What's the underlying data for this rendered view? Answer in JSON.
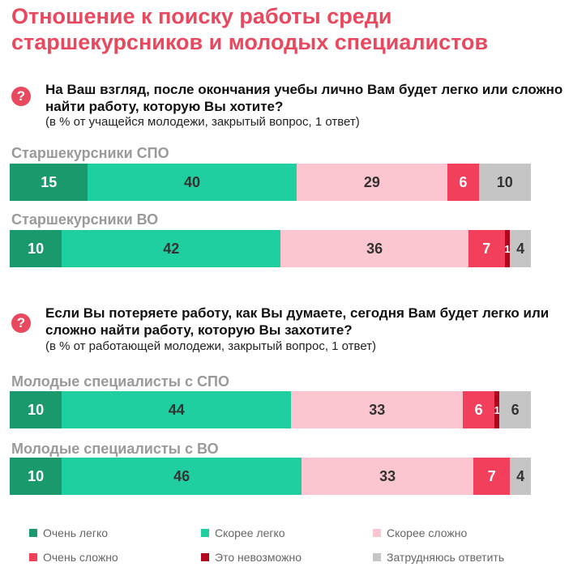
{
  "title": "Отношение к поиску работы среди старшекурсников и молодых специалистов",
  "colors": {
    "very_easy": "#1a9a6c",
    "rather_easy": "#20cfa0",
    "rather_hard": "#fbc6cf",
    "very_hard": "#f23f5b",
    "impossible": "#b0061e",
    "hard_to_say": "#c5c5c5",
    "accent": "#e8495e"
  },
  "question_icon": "question-mark-icon",
  "question_icon_glyph": "?",
  "chart_data": [
    {
      "type": "bar",
      "orientation": "horizontal-stacked",
      "question": "На Ваш взгляд, после окончания учебы лично Вам будет легко или сложно найти работу, которую Вы хотите?",
      "note": "(в % от учащейся молодежи, закрытый вопрос, 1 ответ)",
      "categories": [
        "Старшекурсники СПО",
        "Старшекурсники ВО"
      ],
      "series": [
        {
          "name": "Очень легко",
          "values": [
            15,
            10
          ]
        },
        {
          "name": "Скорее легко",
          "values": [
            40,
            42
          ]
        },
        {
          "name": "Скорее сложно",
          "values": [
            29,
            36
          ]
        },
        {
          "name": "Очень сложно",
          "values": [
            6,
            7
          ]
        },
        {
          "name": "Это невозможно",
          "values": [
            null,
            1
          ]
        },
        {
          "name": "Затрудняюсь ответить",
          "values": [
            10,
            4
          ]
        }
      ]
    },
    {
      "type": "bar",
      "orientation": "horizontal-stacked",
      "question": "Если Вы потеряете работу, как Вы думаете, сегодня Вам будет легко или сложно найти работу, которую Вы захотите?",
      "note": "(в % от работающей молодежи, закрытый вопрос, 1 ответ)",
      "categories": [
        "Молодые специалисты с СПО",
        "Молодые специалисты с ВО"
      ],
      "series": [
        {
          "name": "Очень легко",
          "values": [
            10,
            10
          ]
        },
        {
          "name": "Скорее легко",
          "values": [
            44,
            46
          ]
        },
        {
          "name": "Скорее сложно",
          "values": [
            33,
            33
          ]
        },
        {
          "name": "Очень сложно",
          "values": [
            6,
            7
          ]
        },
        {
          "name": "Это невозможно",
          "values": [
            1,
            null
          ]
        },
        {
          "name": "Затрудняюсь ответить",
          "values": [
            6,
            4
          ]
        }
      ]
    }
  ],
  "legend": [
    {
      "label": "Очень легко",
      "color_key": "very_easy"
    },
    {
      "label": "Скорее легко",
      "color_key": "rather_easy"
    },
    {
      "label": "Скорее сложно",
      "color_key": "rather_hard"
    },
    {
      "label": "Очень сложно",
      "color_key": "very_hard"
    },
    {
      "label": "Это невозможно",
      "color_key": "impossible"
    },
    {
      "label": "Затрудняюсь ответить",
      "color_key": "hard_to_say"
    }
  ]
}
